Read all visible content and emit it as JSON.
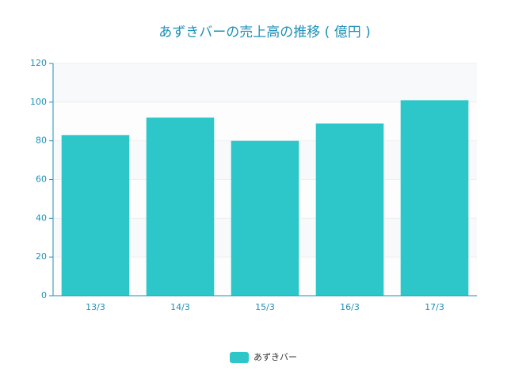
{
  "chart_data": {
    "type": "bar",
    "title": "あずきバーの売上高の推移 ( 億円 )",
    "categories": [
      "13/3",
      "14/3",
      "15/3",
      "16/3",
      "17/3"
    ],
    "series": [
      {
        "name": "あずきバー",
        "color": "#2ec7c9",
        "values": [
          83,
          92,
          80,
          89,
          101
        ]
      }
    ],
    "ylim": [
      0,
      120
    ],
    "yticks": [
      0,
      20,
      40,
      60,
      80,
      100,
      120
    ],
    "grid": true,
    "legend": "bottom"
  }
}
